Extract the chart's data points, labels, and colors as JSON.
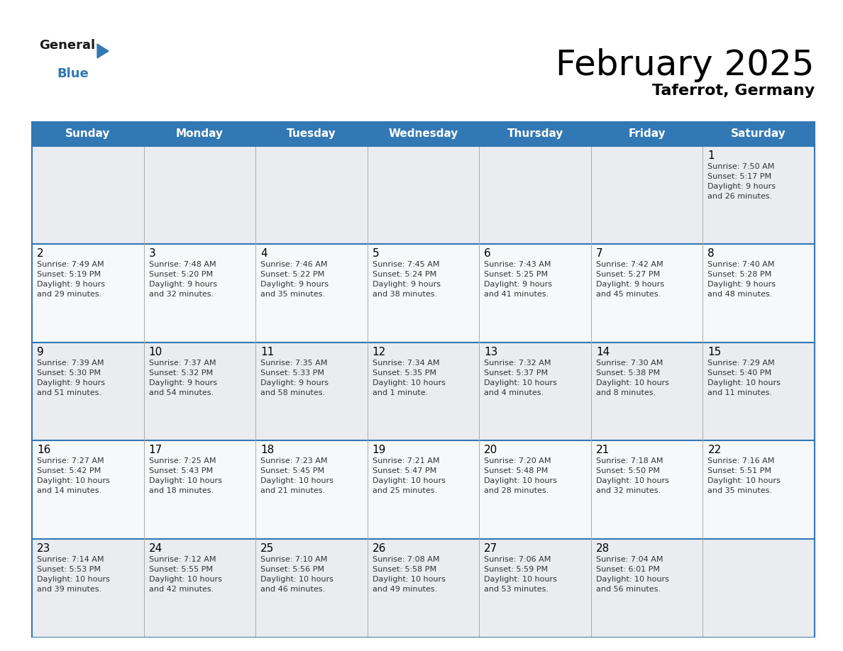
{
  "title": "February 2025",
  "subtitle": "Taferrot, Germany",
  "header_color": "#3278B4",
  "header_text_color": "#FFFFFF",
  "cell_bg_even": "#EAECF0",
  "cell_bg_odd": "#F7F8FA",
  "border_color": "#3278B4",
  "text_color": "#333333",
  "days_of_week": [
    "Sunday",
    "Monday",
    "Tuesday",
    "Wednesday",
    "Thursday",
    "Friday",
    "Saturday"
  ],
  "calendar_data": [
    [
      null,
      null,
      null,
      null,
      null,
      null,
      {
        "day": "1",
        "sunrise": "Sunrise: 7:50 AM",
        "sunset": "Sunset: 5:17 PM",
        "daylight": "Daylight: 9 hours",
        "daylight2": "and 26 minutes."
      }
    ],
    [
      {
        "day": "2",
        "sunrise": "Sunrise: 7:49 AM",
        "sunset": "Sunset: 5:19 PM",
        "daylight": "Daylight: 9 hours",
        "daylight2": "and 29 minutes."
      },
      {
        "day": "3",
        "sunrise": "Sunrise: 7:48 AM",
        "sunset": "Sunset: 5:20 PM",
        "daylight": "Daylight: 9 hours",
        "daylight2": "and 32 minutes."
      },
      {
        "day": "4",
        "sunrise": "Sunrise: 7:46 AM",
        "sunset": "Sunset: 5:22 PM",
        "daylight": "Daylight: 9 hours",
        "daylight2": "and 35 minutes."
      },
      {
        "day": "5",
        "sunrise": "Sunrise: 7:45 AM",
        "sunset": "Sunset: 5:24 PM",
        "daylight": "Daylight: 9 hours",
        "daylight2": "and 38 minutes."
      },
      {
        "day": "6",
        "sunrise": "Sunrise: 7:43 AM",
        "sunset": "Sunset: 5:25 PM",
        "daylight": "Daylight: 9 hours",
        "daylight2": "and 41 minutes."
      },
      {
        "day": "7",
        "sunrise": "Sunrise: 7:42 AM",
        "sunset": "Sunset: 5:27 PM",
        "daylight": "Daylight: 9 hours",
        "daylight2": "and 45 minutes."
      },
      {
        "day": "8",
        "sunrise": "Sunrise: 7:40 AM",
        "sunset": "Sunset: 5:28 PM",
        "daylight": "Daylight: 9 hours",
        "daylight2": "and 48 minutes."
      }
    ],
    [
      {
        "day": "9",
        "sunrise": "Sunrise: 7:39 AM",
        "sunset": "Sunset: 5:30 PM",
        "daylight": "Daylight: 9 hours",
        "daylight2": "and 51 minutes."
      },
      {
        "day": "10",
        "sunrise": "Sunrise: 7:37 AM",
        "sunset": "Sunset: 5:32 PM",
        "daylight": "Daylight: 9 hours",
        "daylight2": "and 54 minutes."
      },
      {
        "day": "11",
        "sunrise": "Sunrise: 7:35 AM",
        "sunset": "Sunset: 5:33 PM",
        "daylight": "Daylight: 9 hours",
        "daylight2": "and 58 minutes."
      },
      {
        "day": "12",
        "sunrise": "Sunrise: 7:34 AM",
        "sunset": "Sunset: 5:35 PM",
        "daylight": "Daylight: 10 hours",
        "daylight2": "and 1 minute."
      },
      {
        "day": "13",
        "sunrise": "Sunrise: 7:32 AM",
        "sunset": "Sunset: 5:37 PM",
        "daylight": "Daylight: 10 hours",
        "daylight2": "and 4 minutes."
      },
      {
        "day": "14",
        "sunrise": "Sunrise: 7:30 AM",
        "sunset": "Sunset: 5:38 PM",
        "daylight": "Daylight: 10 hours",
        "daylight2": "and 8 minutes."
      },
      {
        "day": "15",
        "sunrise": "Sunrise: 7:29 AM",
        "sunset": "Sunset: 5:40 PM",
        "daylight": "Daylight: 10 hours",
        "daylight2": "and 11 minutes."
      }
    ],
    [
      {
        "day": "16",
        "sunrise": "Sunrise: 7:27 AM",
        "sunset": "Sunset: 5:42 PM",
        "daylight": "Daylight: 10 hours",
        "daylight2": "and 14 minutes."
      },
      {
        "day": "17",
        "sunrise": "Sunrise: 7:25 AM",
        "sunset": "Sunset: 5:43 PM",
        "daylight": "Daylight: 10 hours",
        "daylight2": "and 18 minutes."
      },
      {
        "day": "18",
        "sunrise": "Sunrise: 7:23 AM",
        "sunset": "Sunset: 5:45 PM",
        "daylight": "Daylight: 10 hours",
        "daylight2": "and 21 minutes."
      },
      {
        "day": "19",
        "sunrise": "Sunrise: 7:21 AM",
        "sunset": "Sunset: 5:47 PM",
        "daylight": "Daylight: 10 hours",
        "daylight2": "and 25 minutes."
      },
      {
        "day": "20",
        "sunrise": "Sunrise: 7:20 AM",
        "sunset": "Sunset: 5:48 PM",
        "daylight": "Daylight: 10 hours",
        "daylight2": "and 28 minutes."
      },
      {
        "day": "21",
        "sunrise": "Sunrise: 7:18 AM",
        "sunset": "Sunset: 5:50 PM",
        "daylight": "Daylight: 10 hours",
        "daylight2": "and 32 minutes."
      },
      {
        "day": "22",
        "sunrise": "Sunrise: 7:16 AM",
        "sunset": "Sunset: 5:51 PM",
        "daylight": "Daylight: 10 hours",
        "daylight2": "and 35 minutes."
      }
    ],
    [
      {
        "day": "23",
        "sunrise": "Sunrise: 7:14 AM",
        "sunset": "Sunset: 5:53 PM",
        "daylight": "Daylight: 10 hours",
        "daylight2": "and 39 minutes."
      },
      {
        "day": "24",
        "sunrise": "Sunrise: 7:12 AM",
        "sunset": "Sunset: 5:55 PM",
        "daylight": "Daylight: 10 hours",
        "daylight2": "and 42 minutes."
      },
      {
        "day": "25",
        "sunrise": "Sunrise: 7:10 AM",
        "sunset": "Sunset: 5:56 PM",
        "daylight": "Daylight: 10 hours",
        "daylight2": "and 46 minutes."
      },
      {
        "day": "26",
        "sunrise": "Sunrise: 7:08 AM",
        "sunset": "Sunset: 5:58 PM",
        "daylight": "Daylight: 10 hours",
        "daylight2": "and 49 minutes."
      },
      {
        "day": "27",
        "sunrise": "Sunrise: 7:06 AM",
        "sunset": "Sunset: 5:59 PM",
        "daylight": "Daylight: 10 hours",
        "daylight2": "and 53 minutes."
      },
      {
        "day": "28",
        "sunrise": "Sunrise: 7:04 AM",
        "sunset": "Sunset: 6:01 PM",
        "daylight": "Daylight: 10 hours",
        "daylight2": "and 56 minutes."
      },
      null
    ]
  ],
  "logo_general_color": "#1a1a1a",
  "logo_blue_color": "#3278B4",
  "logo_triangle_color": "#3278B4",
  "title_fontsize": 36,
  "subtitle_fontsize": 16,
  "header_fontsize": 11,
  "day_num_fontsize": 11,
  "cell_text_fontsize": 8
}
